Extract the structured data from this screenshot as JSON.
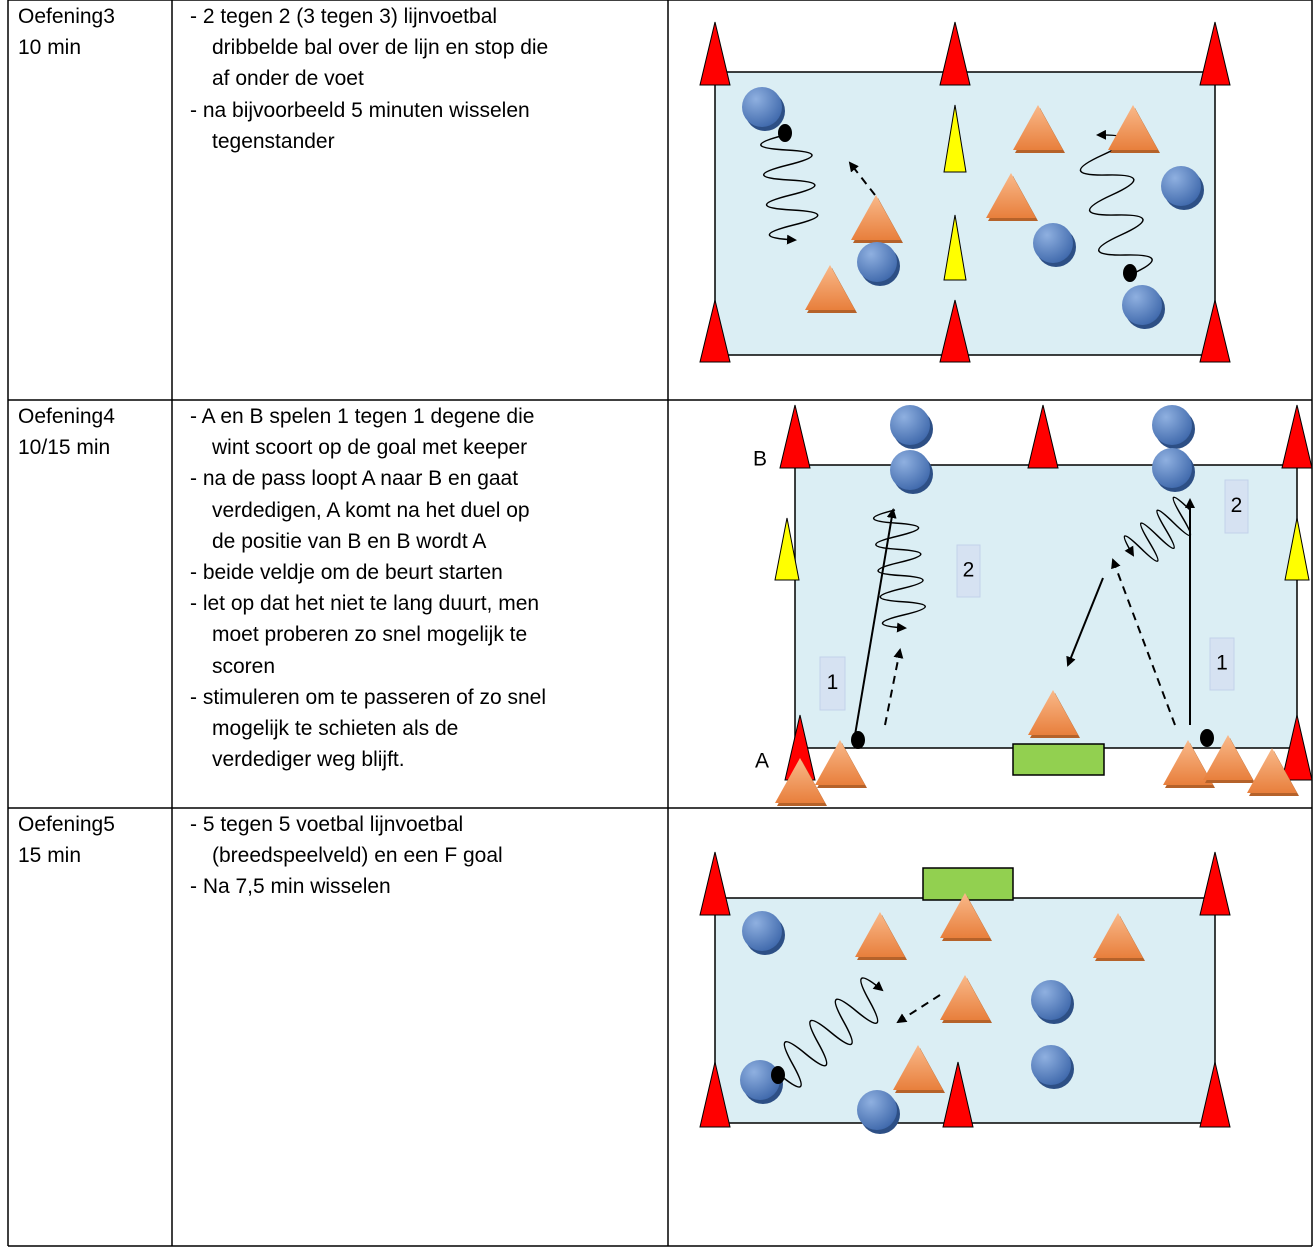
{
  "exercises": [
    {
      "name": "Oefening3",
      "duration": "10 min",
      "items": [
        [
          "- 2 tegen 2 (3 tegen 3) lijnvoetbal",
          "dribbelde bal over de lijn en stop die",
          "af onder de voet"
        ],
        [
          "- na bijvoorbeeld 5 minuten wisselen",
          "tegenstander"
        ]
      ]
    },
    {
      "name": "Oefening4",
      "duration": "10/15 min",
      "items": [
        [
          "- A en B spelen 1 tegen 1 degene die",
          "wint scoort op de goal met keeper"
        ],
        [
          "- na de pass loopt A naar B en gaat",
          "verdedigen, A komt na het duel op",
          "de positie van B en B wordt A"
        ],
        [
          "- beide veldje om de beurt starten"
        ],
        [
          "- let op dat het niet te lang duurt, men",
          "moet proberen zo snel mogelijk te",
          "scoren"
        ],
        [
          "- stimuleren om te passeren of zo snel",
          "mogelijk te schieten als de",
          "verdediger weg blijft."
        ]
      ],
      "diagram_labels": [
        "B",
        "A",
        "1",
        "2",
        "2",
        "1"
      ]
    },
    {
      "name": "Oefening5",
      "duration": "15 min",
      "items": [
        [
          "- 5 tegen 5 voetbal lijnvoetbal",
          "(breedspeelveld) en een F goal"
        ],
        [
          "- Na 7,5 min wisselen"
        ]
      ]
    }
  ]
}
